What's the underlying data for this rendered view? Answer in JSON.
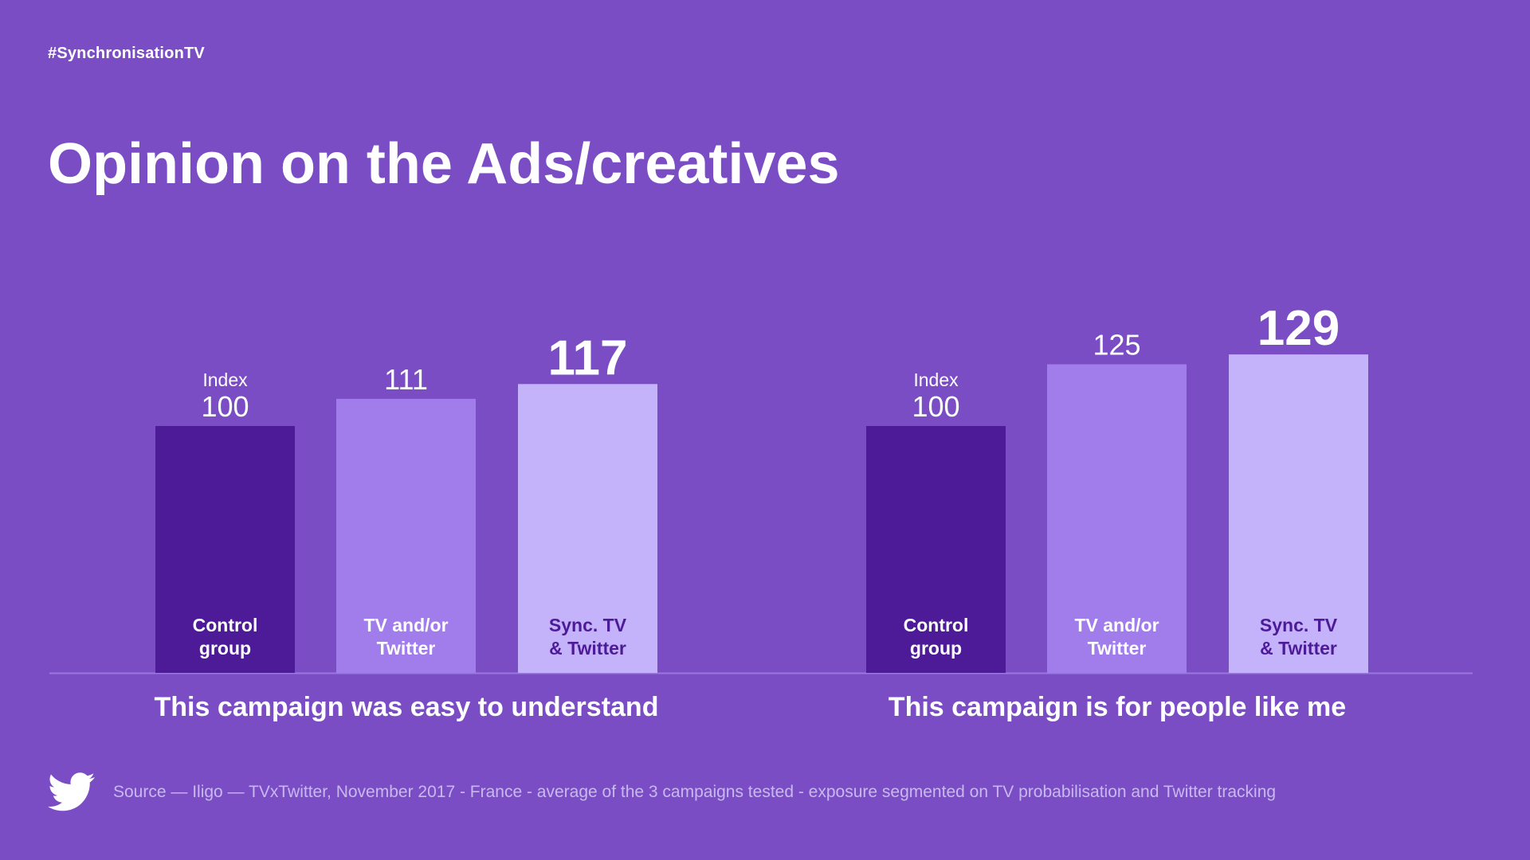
{
  "header": {
    "hashtag": "#SynchronisationTV",
    "title": "Opinion on the Ads/creatives"
  },
  "footer": {
    "source": "Source — Iligo — TVxTwitter, November 2017 - France - average of the 3 campaigns tested - exposure segmented on TV probabilisation and Twitter tracking",
    "logo_icon": "twitter-bird-icon"
  },
  "colors": {
    "background": "#7a4dc5",
    "control": "#4e1b98",
    "tv_or_twitter": "#a17ceb",
    "sync": "#c4b3fa",
    "axis": "#9b77dd"
  },
  "chart_data": [
    {
      "type": "bar",
      "xlabel": "This campaign was easy to understand",
      "index_label": "Index",
      "categories": [
        "Control group",
        "TV and/or Twitter",
        "Sync. TV & Twitter"
      ],
      "category_lines": [
        [
          "Control",
          "group"
        ],
        [
          "TV and/or",
          "Twitter"
        ],
        [
          "Sync. TV",
          "& Twitter"
        ]
      ],
      "values": [
        100,
        111,
        117
      ],
      "value_labels": [
        "100",
        "111",
        "117"
      ],
      "highlight_index": 2,
      "ylim": [
        0,
        131
      ]
    },
    {
      "type": "bar",
      "xlabel": "This campaign is for people like me",
      "index_label": "Index",
      "categories": [
        "Control group",
        "TV and/or Twitter",
        "Sync. TV & Twitter"
      ],
      "category_lines": [
        [
          "Control",
          "group"
        ],
        [
          "TV and/or",
          "Twitter"
        ],
        [
          "Sync. TV",
          "& Twitter"
        ]
      ],
      "values": [
        100,
        125,
        129
      ],
      "value_labels": [
        "100",
        "125",
        "129"
      ],
      "highlight_index": 2,
      "ylim": [
        0,
        131
      ]
    }
  ]
}
